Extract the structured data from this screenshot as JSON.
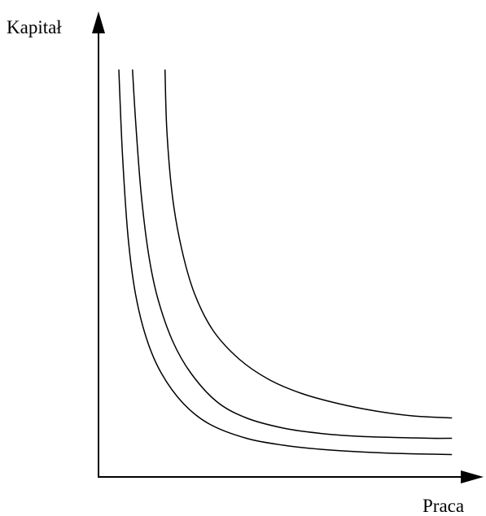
{
  "chart_data": {
    "type": "line",
    "title": "",
    "xlabel": "Praca",
    "ylabel": "Kapitał",
    "xlim": [
      0,
      10
    ],
    "ylim": [
      0,
      10
    ],
    "grid": false,
    "legend": "none",
    "axis_ticks": false,
    "series": [
      {
        "x": [
          0.55,
          0.65,
          0.8,
          1.0,
          1.3,
          1.7,
          2.3,
          3.0,
          4.0,
          5.0,
          6.0,
          7.0,
          8.0,
          9.0,
          9.55
        ],
        "y": [
          10.0,
          7.9,
          5.9,
          4.5,
          3.4,
          2.55,
          1.8,
          1.3,
          0.95,
          0.78,
          0.68,
          0.62,
          0.58,
          0.56,
          0.55
        ]
      },
      {
        "x": [
          0.92,
          1.0,
          1.15,
          1.35,
          1.6,
          2.0,
          2.5,
          3.2,
          4.0,
          5.0,
          6.0,
          7.0,
          8.0,
          9.0,
          9.55
        ],
        "y": [
          10.0,
          8.8,
          7.0,
          5.5,
          4.4,
          3.35,
          2.55,
          1.85,
          1.45,
          1.2,
          1.07,
          1.0,
          0.97,
          0.95,
          0.95
        ]
      },
      {
        "x": [
          1.8,
          1.85,
          2.0,
          2.25,
          2.6,
          3.1,
          3.8,
          4.6,
          5.5,
          6.5,
          7.5,
          8.5,
          9.55
        ],
        "y": [
          10.0,
          8.5,
          6.9,
          5.6,
          4.5,
          3.6,
          2.9,
          2.4,
          2.05,
          1.8,
          1.62,
          1.5,
          1.45
        ]
      }
    ]
  }
}
